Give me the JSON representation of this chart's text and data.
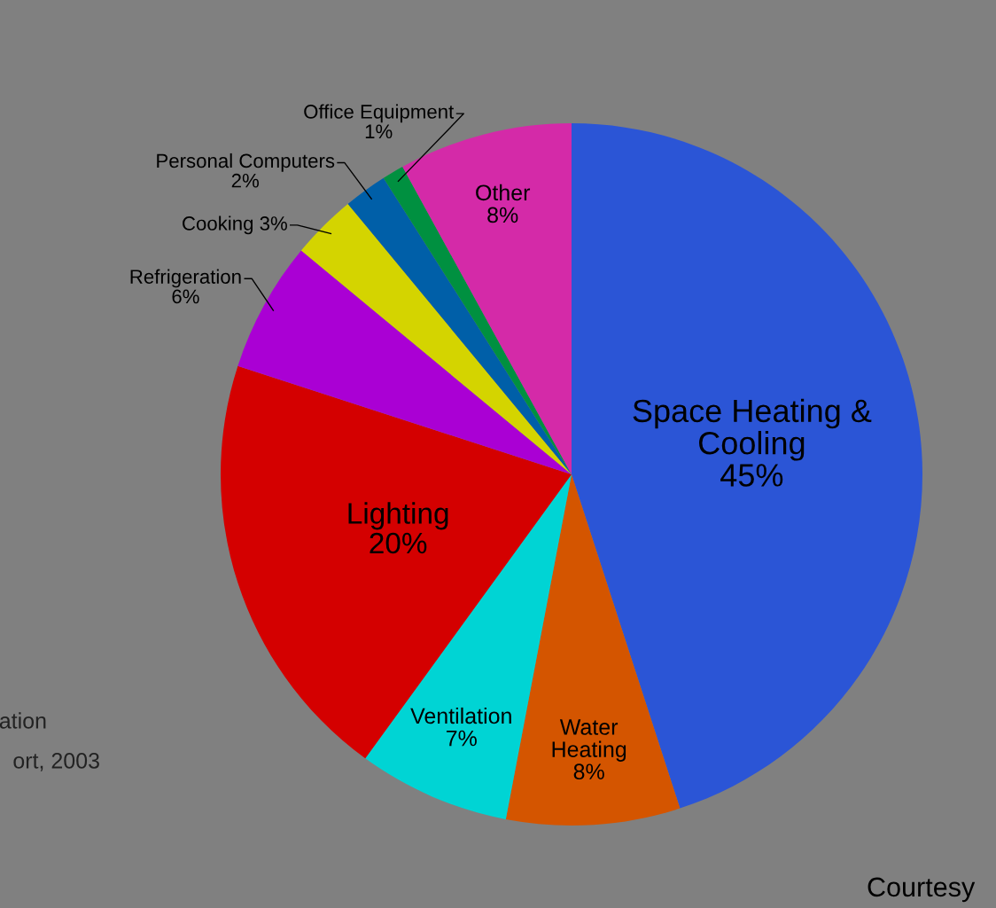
{
  "chart_data": {
    "type": "pie",
    "categories": [
      "Space Heating &\nCooling",
      "Water\nHeating",
      "Ventilation",
      "Lighting",
      "Refrigeration",
      "Cooking",
      "Personal Computers",
      "Office Equipment",
      "Other"
    ],
    "values": [
      45,
      8,
      7,
      20,
      6,
      3,
      2,
      1,
      8
    ],
    "value_labels": [
      "45%",
      "8%",
      "7%",
      "20%",
      "6%",
      "3%",
      "2%",
      "1%",
      "8%"
    ],
    "colors": [
      "#2b55d6",
      "#d45500",
      "#00d4d4",
      "#d40000",
      "#aa00d4",
      "#d4d400",
      "#005fa8",
      "#009040",
      "#d42aa8"
    ],
    "annotations": [
      "ation",
      "ort, 2003",
      "Courtesy"
    ]
  }
}
